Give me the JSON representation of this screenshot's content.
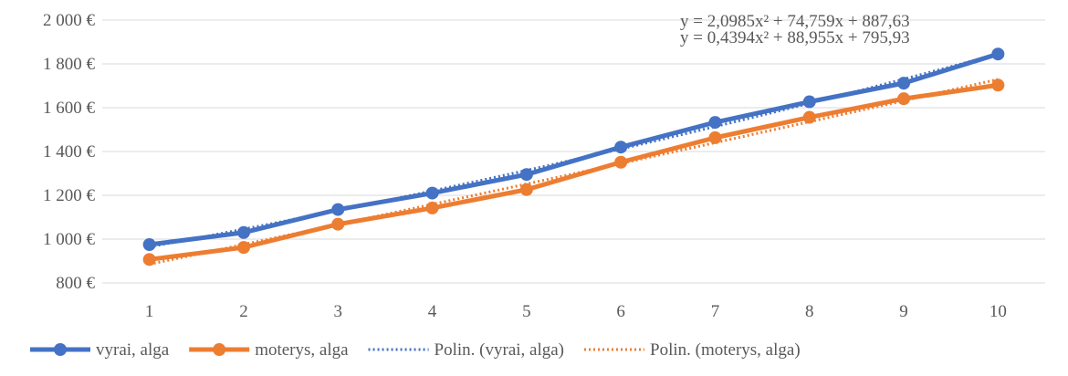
{
  "chart_data": {
    "type": "line",
    "title": "",
    "xlabel": "",
    "ylabel": "",
    "x": [
      1,
      2,
      3,
      4,
      5,
      6,
      7,
      8,
      9,
      10
    ],
    "x_tick_labels": [
      "1",
      "2",
      "3",
      "4",
      "5",
      "6",
      "7",
      "8",
      "9",
      "10"
    ],
    "y_ticks": [
      800,
      1000,
      1200,
      1400,
      1600,
      1800,
      2000
    ],
    "y_tick_labels": [
      "800 €",
      "1 000 €",
      "1 200 €",
      "1 400 €",
      "1 600 €",
      "1 800 €",
      "2 000 €"
    ],
    "ylim": [
      800,
      2000
    ],
    "grid": "horizontal",
    "legend_position": "bottom",
    "series": [
      {
        "name": "vyrai, alga",
        "color": "#4472C4",
        "values": [
          975,
          1030,
          1135,
          1210,
          1295,
          1420,
          1533,
          1627,
          1712,
          1845
        ]
      },
      {
        "name": "moterys, alga",
        "color": "#ED7D31",
        "values": [
          907,
          962,
          1068,
          1142,
          1226,
          1351,
          1463,
          1556,
          1641,
          1703
        ]
      }
    ],
    "trendlines": [
      {
        "name": "Polin. (vyrai, alga)",
        "color": "#4472C4",
        "style": "dotted",
        "equation": "y = 2,0985x² + 74,759x + 887,63",
        "a": 2.0985,
        "b": 74.759,
        "c": 887.63
      },
      {
        "name": "Polin. (moterys, alga)",
        "color": "#ED7D31",
        "style": "dotted",
        "equation": "y = 0,4394x² + 88,955x + 795,93",
        "a": 0.4394,
        "b": 88.955,
        "c": 795.93
      }
    ]
  }
}
